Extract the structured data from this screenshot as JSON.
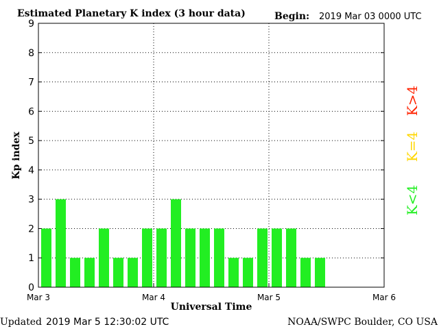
{
  "header": {
    "title": "Estimated Planetary K index (3 hour data)",
    "begin_label": "Begin:",
    "begin_value": "2019 Mar 03 0000 UTC"
  },
  "footer": {
    "updated_label": "Updated",
    "updated_value": "2019 Mar  5 12:30:02 UTC",
    "source": "NOAA/SWPC Boulder, CO USA"
  },
  "legend": {
    "items": [
      {
        "label": "K>4",
        "color": "#ff2200"
      },
      {
        "label": "K=4",
        "color": "#ffd700"
      },
      {
        "label": "K<4",
        "color": "#22ee22"
      }
    ]
  },
  "chart_data": {
    "type": "bar",
    "title": "Estimated Planetary K index (3 hour data)",
    "xlabel": "Universal Time",
    "ylabel": "Kp index",
    "ylim": [
      0,
      9
    ],
    "yticks": [
      "0",
      "1",
      "2",
      "3",
      "4",
      "5",
      "6",
      "7",
      "8",
      "9"
    ],
    "xticks": [
      "Mar 3",
      "Mar 4",
      "Mar 5",
      "Mar 6"
    ],
    "interval_hours": 3,
    "values": [
      2,
      3,
      1,
      1,
      2,
      1,
      1,
      2,
      2,
      3,
      2,
      2,
      2,
      1,
      1,
      2,
      2,
      2,
      1,
      1
    ],
    "slots_total": 24,
    "grid": true,
    "bar_color": "#22ee22",
    "colors": {
      "below4": "#22ee22",
      "equal4": "#ffd700",
      "above4": "#ff2200"
    }
  }
}
